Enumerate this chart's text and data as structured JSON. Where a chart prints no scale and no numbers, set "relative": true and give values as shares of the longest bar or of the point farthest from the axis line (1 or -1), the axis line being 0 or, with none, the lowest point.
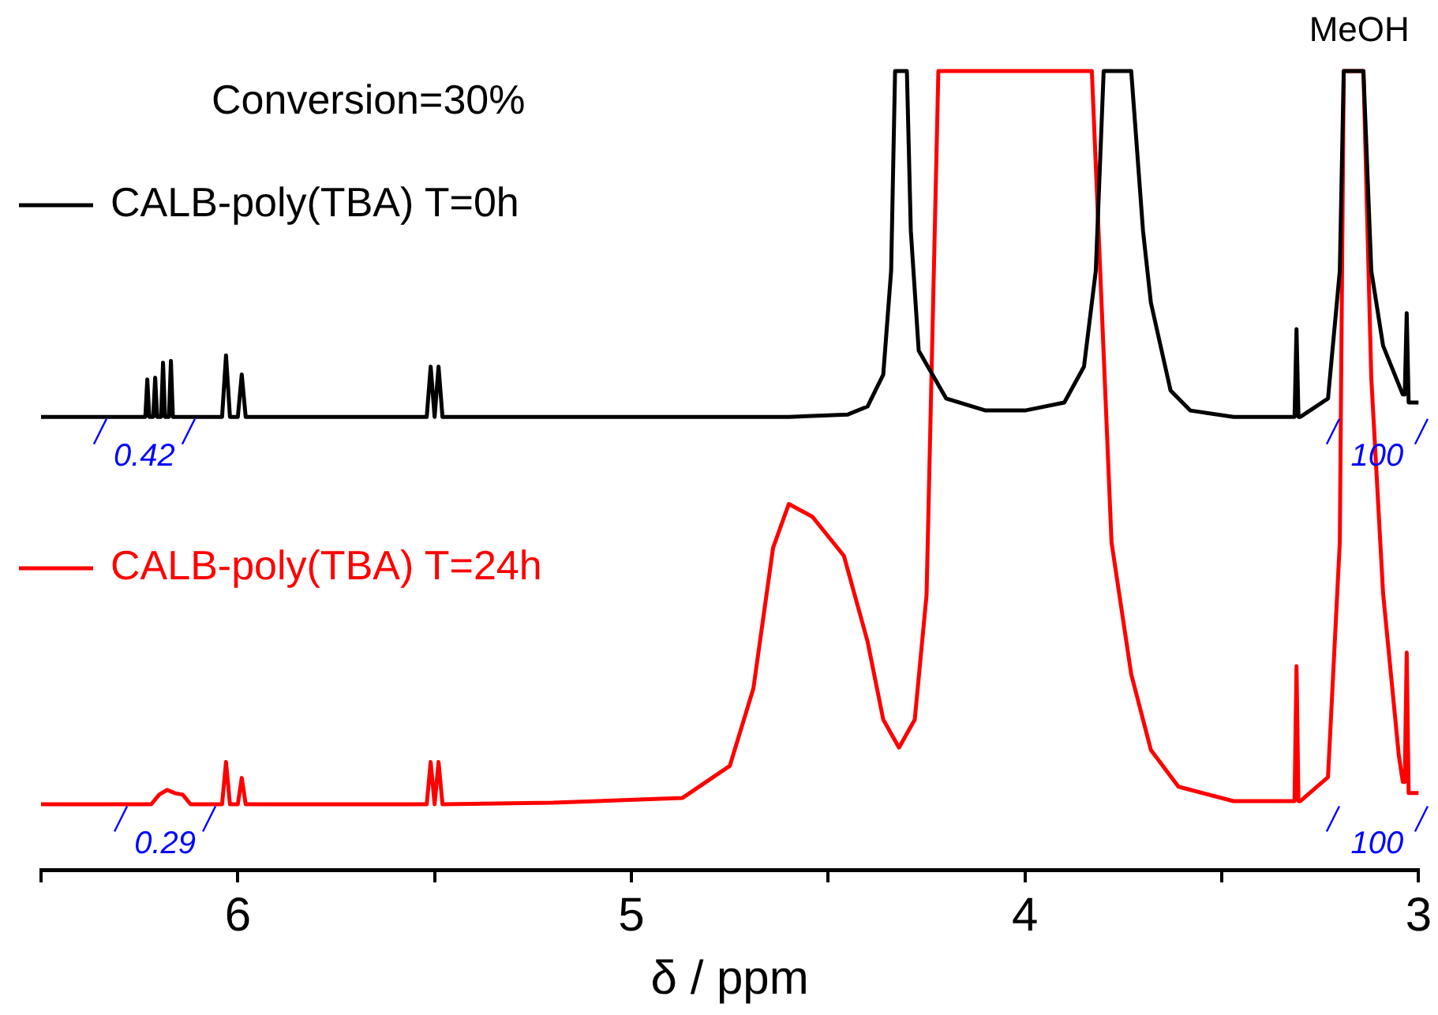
{
  "chart_data": {
    "type": "line",
    "title": "Conversion=30%",
    "xlabel": "δ / ppm",
    "relative": true,
    "legend": "top left",
    "marker": "none",
    "line_style": "solid",
    "grid": false,
    "xlim": [
      6.5,
      3
    ],
    "xticks": [
      {
        "value": 6.5,
        "label": null
      },
      6,
      {
        "value": 5.5,
        "label": null
      },
      5,
      {
        "value": 4.5,
        "label": null
      },
      4,
      {
        "value": 3.5,
        "label": null
      },
      3
    ],
    "series": [
      {
        "name": "CALB-poly(TBA) T=0h",
        "color": "#000000",
        "x": [
          6.5,
          6.26,
          6.235,
          6.23,
          6.225,
          6.215,
          6.21,
          6.205,
          6.195,
          6.19,
          6.185,
          6.175,
          6.17,
          6.165,
          6.1,
          6.04,
          6.03,
          6.02,
          6.0,
          5.99,
          5.98,
          5.7,
          5.52,
          5.51,
          5.5,
          5.49,
          5.48,
          5.0,
          4.6,
          4.45,
          4.4,
          4.36,
          4.34,
          4.33,
          4.3,
          4.29,
          4.27,
          4.2,
          4.1,
          4.0,
          3.9,
          3.85,
          3.82,
          3.8,
          3.73,
          3.7,
          3.68,
          3.63,
          3.58,
          3.47,
          3.33,
          3.315,
          3.31,
          3.305,
          3.3,
          3.23,
          3.2,
          3.19,
          3.14,
          3.12,
          3.09,
          3.04,
          3.035,
          3.03,
          3.025,
          3.01,
          3.0
        ],
        "values": [
          0.567,
          0.567,
          0.567,
          0.614,
          0.567,
          0.567,
          0.616,
          0.567,
          0.567,
          0.635,
          0.567,
          0.567,
          0.637,
          0.567,
          0.567,
          0.567,
          0.644,
          0.567,
          0.567,
          0.62,
          0.567,
          0.567,
          0.567,
          0.63,
          0.567,
          0.63,
          0.567,
          0.567,
          0.567,
          0.57,
          0.58,
          0.62,
          0.75,
          1,
          1,
          0.8,
          0.65,
          0.59,
          0.575,
          0.575,
          0.585,
          0.63,
          0.75,
          1,
          1,
          0.8,
          0.71,
          0.6,
          0.575,
          0.567,
          0.567,
          0.567,
          0.677,
          0.567,
          0.567,
          0.59,
          0.75,
          1,
          1,
          0.75,
          0.656,
          0.595,
          0.595,
          0.697,
          0.585,
          0.585,
          0.585
        ]
      },
      {
        "name": "CALB-poly(TBA) T=24h",
        "color": "#ff0000",
        "x": [
          6.5,
          6.22,
          6.2,
          6.18,
          6.16,
          6.14,
          6.12,
          6.04,
          6.03,
          6.02,
          6.0,
          5.99,
          5.98,
          5.7,
          5.52,
          5.51,
          5.5,
          5.49,
          5.48,
          5.2,
          4.87,
          4.75,
          4.69,
          4.64,
          4.6,
          4.54,
          4.46,
          4.4,
          4.36,
          4.32,
          4.28,
          4.25,
          4.22,
          3.83,
          3.78,
          3.73,
          3.68,
          3.61,
          3.47,
          3.33,
          3.315,
          3.31,
          3.305,
          3.3,
          3.23,
          3.2,
          3.19,
          3.14,
          3.12,
          3.09,
          3.05,
          3.04,
          3.035,
          3.03,
          3.025,
          3.01,
          3.0
        ],
        "values": [
          0.082,
          0.082,
          0.094,
          0.1,
          0.096,
          0.094,
          0.082,
          0.082,
          0.135,
          0.082,
          0.082,
          0.115,
          0.082,
          0.082,
          0.082,
          0.135,
          0.082,
          0.135,
          0.082,
          0.084,
          0.09,
          0.13,
          0.227,
          0.403,
          0.458,
          0.442,
          0.393,
          0.286,
          0.188,
          0.153,
          0.188,
          0.344,
          1,
          1,
          0.41,
          0.245,
          0.15,
          0.104,
          0.086,
          0.086,
          0.086,
          0.255,
          0.086,
          0.086,
          0.116,
          0.41,
          1,
          1,
          0.616,
          0.346,
          0.143,
          0.11,
          0.11,
          0.272,
          0.096,
          0.096,
          0.096
        ]
      }
    ],
    "annotations": [
      "MeOH",
      "0.42",
      "100",
      "0.29",
      "100"
    ]
  }
}
